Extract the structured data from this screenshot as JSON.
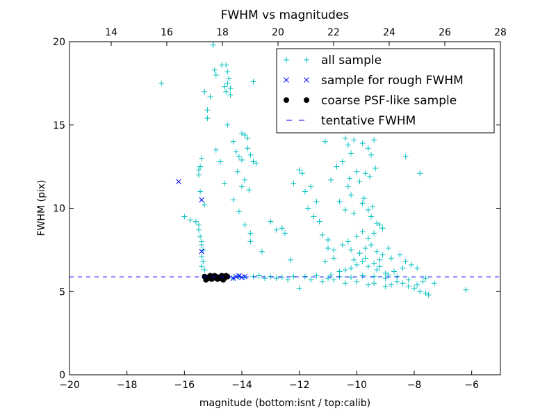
{
  "chart_data": {
    "type": "scatter",
    "title": "FWHM vs magnitudes",
    "xlabel": "magnitude (bottom:isnt / top:calib)",
    "ylabel": "FWHM (pix)",
    "xlim": [
      -20,
      -5
    ],
    "ylim": [
      0,
      20
    ],
    "top_xlim": [
      12.5,
      28
    ],
    "x_ticks": [
      -20,
      -18,
      -16,
      -14,
      -12,
      -10,
      -8,
      -6
    ],
    "x_tick_labels": [
      "−20",
      "−18",
      "−16",
      "−14",
      "−12",
      "−10",
      "−8",
      "−6"
    ],
    "y_ticks": [
      0,
      5,
      10,
      15,
      20
    ],
    "y_tick_labels": [
      "0",
      "5",
      "10",
      "15",
      "20"
    ],
    "top_ticks": [
      14,
      16,
      18,
      20,
      22,
      24,
      26,
      28
    ],
    "top_tick_labels": [
      "14",
      "16",
      "18",
      "20",
      "22",
      "24",
      "26",
      "28"
    ],
    "legend_position": "top-right",
    "tentative_fwhm": 5.88,
    "series": [
      {
        "name": "all sample",
        "marker": "+",
        "color": "#00bfbf",
        "points": [
          [
            -16.8,
            17.5
          ],
          [
            -16.0,
            9.5
          ],
          [
            -15.8,
            9.3
          ],
          [
            -15.6,
            9.2
          ],
          [
            -15.5,
            9.0
          ],
          [
            -15.5,
            8.7
          ],
          [
            -15.45,
            8.3
          ],
          [
            -15.4,
            8.0
          ],
          [
            -15.4,
            7.8
          ],
          [
            -15.35,
            7.5
          ],
          [
            -15.4,
            7.1
          ],
          [
            -15.35,
            6.8
          ],
          [
            -15.4,
            6.5
          ],
          [
            -15.3,
            6.3
          ],
          [
            -15.45,
            11.0
          ],
          [
            -15.5,
            12.0
          ],
          [
            -15.45,
            12.5
          ],
          [
            -15.5,
            12.3
          ],
          [
            -15.4,
            13.0
          ],
          [
            -15.3,
            10.2
          ],
          [
            -15.2,
            15.4
          ],
          [
            -15.2,
            15.9
          ],
          [
            -15.1,
            16.7
          ],
          [
            -15.3,
            17.0
          ],
          [
            -15.0,
            20.0
          ],
          [
            -15.0,
            19.8
          ],
          [
            -14.95,
            18.3
          ],
          [
            -14.9,
            18.0
          ],
          [
            -14.7,
            18.6
          ],
          [
            -14.55,
            18.6
          ],
          [
            -14.5,
            18.2
          ],
          [
            -14.45,
            17.8
          ],
          [
            -14.5,
            17.5
          ],
          [
            -14.4,
            17.2
          ],
          [
            -14.6,
            17.3
          ],
          [
            -14.55,
            17.0
          ],
          [
            -14.4,
            16.8
          ],
          [
            -14.5,
            15.0
          ],
          [
            -14.9,
            13.5
          ],
          [
            -14.75,
            12.8
          ],
          [
            -14.3,
            14.0
          ],
          [
            -14.2,
            13.4
          ],
          [
            -14.1,
            13.1
          ],
          [
            -14.15,
            12.2
          ],
          [
            -14.6,
            11.5
          ],
          [
            -14.0,
            14.5
          ],
          [
            -13.9,
            14.4
          ],
          [
            -13.8,
            14.2
          ],
          [
            -13.7,
            13.2
          ],
          [
            -13.6,
            12.8
          ],
          [
            -13.9,
            11.7
          ],
          [
            -14.0,
            11.3
          ],
          [
            -13.75,
            11.1
          ],
          [
            -14.3,
            10.5
          ],
          [
            -14.1,
            9.8
          ],
          [
            -13.9,
            9.0
          ],
          [
            -13.7,
            8.5
          ],
          [
            -13.6,
            17.6
          ],
          [
            -14.0,
            12.9
          ],
          [
            -13.8,
            13.6
          ],
          [
            -13.5,
            12.7
          ],
          [
            -13.0,
            9.2
          ],
          [
            -12.8,
            8.7
          ],
          [
            -12.5,
            8.5
          ],
          [
            -12.6,
            8.8
          ],
          [
            -12.3,
            6.9
          ],
          [
            -13.3,
            7.4
          ],
          [
            -13.7,
            8.0
          ],
          [
            -12.0,
            12.3
          ],
          [
            -11.8,
            11.0
          ],
          [
            -11.7,
            10.0
          ],
          [
            -11.5,
            9.5
          ],
          [
            -11.3,
            9.2
          ],
          [
            -11.4,
            10.4
          ],
          [
            -11.9,
            12.1
          ],
          [
            -12.2,
            11.5
          ],
          [
            -11.6,
            11.3
          ],
          [
            -11.2,
            8.4
          ],
          [
            -11.0,
            8.1
          ],
          [
            -11.0,
            7.6
          ],
          [
            -10.8,
            7.0
          ],
          [
            -10.5,
            12.8
          ],
          [
            -10.3,
            13.8
          ],
          [
            -10.2,
            13.3
          ],
          [
            -10.0,
            12.2
          ],
          [
            -10.3,
            11.3
          ],
          [
            -10.7,
            12.5
          ],
          [
            -10.9,
            11.7
          ],
          [
            -11.1,
            14.0
          ],
          [
            -10.4,
            14.2
          ],
          [
            -10.1,
            14.1
          ],
          [
            -9.8,
            13.9
          ],
          [
            -9.6,
            13.6
          ],
          [
            -9.5,
            13.2
          ],
          [
            -9.4,
            14.1
          ],
          [
            -9.7,
            12.1
          ],
          [
            -9.9,
            11.6
          ],
          [
            -10.2,
            10.8
          ],
          [
            -10.6,
            10.4
          ],
          [
            -10.4,
            9.9
          ],
          [
            -10.1,
            9.7
          ],
          [
            -9.8,
            10.3
          ],
          [
            -9.6,
            9.9
          ],
          [
            -9.5,
            9.5
          ],
          [
            -9.3,
            9.1
          ],
          [
            -9.2,
            9.0
          ],
          [
            -9.1,
            8.8
          ],
          [
            -9.4,
            8.5
          ],
          [
            -9.6,
            8.2
          ],
          [
            -9.8,
            8.6
          ],
          [
            -10.0,
            8.3
          ],
          [
            -10.3,
            8.0
          ],
          [
            -10.5,
            7.8
          ],
          [
            -10.2,
            7.5
          ],
          [
            -9.9,
            7.3
          ],
          [
            -9.7,
            7.6
          ],
          [
            -9.5,
            7.8
          ],
          [
            -9.3,
            7.4
          ],
          [
            -9.1,
            7.2
          ],
          [
            -8.9,
            7.6
          ],
          [
            -8.8,
            7.0
          ],
          [
            -8.5,
            7.2
          ],
          [
            -8.3,
            6.8
          ],
          [
            -8.1,
            6.6
          ],
          [
            -7.9,
            6.4
          ],
          [
            -9.2,
            6.9
          ],
          [
            -9.4,
            6.7
          ],
          [
            -9.6,
            6.5
          ],
          [
            -9.8,
            6.8
          ],
          [
            -10.0,
            6.6
          ],
          [
            -10.2,
            6.4
          ],
          [
            -10.4,
            6.3
          ],
          [
            -10.6,
            6.2
          ],
          [
            -10.1,
            6.9
          ],
          [
            -9.7,
            7.0
          ],
          [
            -9.3,
            6.3
          ],
          [
            -9.0,
            6.1
          ],
          [
            -8.7,
            6.2
          ],
          [
            -8.4,
            6.4
          ],
          [
            -8.6,
            5.6
          ],
          [
            -8.4,
            5.5
          ],
          [
            -8.2,
            5.3
          ],
          [
            -8.0,
            5.2
          ],
          [
            -7.8,
            5.0
          ],
          [
            -7.6,
            4.9
          ],
          [
            -7.5,
            4.8
          ],
          [
            -7.9,
            5.4
          ],
          [
            -7.7,
            5.6
          ],
          [
            -7.3,
            5.5
          ],
          [
            -6.2,
            5.1
          ],
          [
            -7.6,
            5.8
          ],
          [
            -8.8,
            5.4
          ],
          [
            -9.0,
            5.3
          ],
          [
            -9.4,
            5.5
          ],
          [
            -9.6,
            5.4
          ],
          [
            -10.0,
            5.6
          ],
          [
            -10.4,
            5.5
          ],
          [
            -10.8,
            5.7
          ],
          [
            -11.2,
            5.6
          ],
          [
            -11.6,
            5.7
          ],
          [
            -12.0,
            5.2
          ],
          [
            -12.4,
            5.7
          ],
          [
            -12.8,
            5.8
          ],
          [
            -13.2,
            5.8
          ],
          [
            -13.6,
            5.9
          ],
          [
            -13.9,
            5.85
          ],
          [
            -14.1,
            5.9
          ],
          [
            -14.3,
            5.8
          ],
          [
            -13.4,
            5.95
          ],
          [
            -13.0,
            5.9
          ],
          [
            -12.6,
            5.85
          ],
          [
            -12.2,
            5.9
          ],
          [
            -11.8,
            5.9
          ],
          [
            -11.4,
            5.95
          ],
          [
            -11.0,
            5.8
          ],
          [
            -10.6,
            5.9
          ],
          [
            -10.2,
            5.85
          ],
          [
            -9.8,
            5.95
          ],
          [
            -9.4,
            5.9
          ],
          [
            -9.0,
            5.8
          ],
          [
            -8.6,
            5.9
          ],
          [
            -8.2,
            5.7
          ],
          [
            -10.8,
            7.5
          ],
          [
            -11.1,
            6.8
          ],
          [
            -10.9,
            6.0
          ],
          [
            -9.2,
            6.5
          ],
          [
            -8.9,
            6.0
          ],
          [
            -9.55,
            11.9
          ],
          [
            -9.35,
            12.4
          ],
          [
            -10.25,
            11.8
          ],
          [
            -8.3,
            13.1
          ],
          [
            -7.8,
            12.1
          ],
          [
            -9.75,
            10.6
          ],
          [
            -9.45,
            10.1
          ]
        ]
      },
      {
        "name": "sample for rough FWHM",
        "marker": "x",
        "color": "#0000ff",
        "points": [
          [
            -16.2,
            11.6
          ],
          [
            -15.4,
            10.5
          ],
          [
            -15.4,
            7.4
          ],
          [
            -14.2,
            5.9
          ],
          [
            -14.0,
            5.85
          ],
          [
            -13.9,
            5.9
          ],
          [
            -14.1,
            5.95
          ],
          [
            -15.0,
            5.9
          ],
          [
            -14.3,
            5.8
          ]
        ]
      },
      {
        "name": "coarse PSF-like sample",
        "marker": "o",
        "color": "#000000",
        "points": [
          [
            -15.3,
            5.9
          ],
          [
            -15.2,
            5.85
          ],
          [
            -15.1,
            5.95
          ],
          [
            -15.0,
            5.8
          ],
          [
            -14.9,
            5.9
          ],
          [
            -14.8,
            5.85
          ],
          [
            -14.7,
            5.95
          ],
          [
            -14.6,
            5.8
          ],
          [
            -14.5,
            5.9
          ],
          [
            -15.25,
            5.7
          ],
          [
            -15.05,
            5.75
          ],
          [
            -14.85,
            5.75
          ],
          [
            -14.65,
            5.7
          ],
          [
            -14.55,
            5.95
          ],
          [
            -14.95,
            5.95
          ],
          [
            -15.15,
            5.8
          ],
          [
            -14.75,
            5.8
          ]
        ]
      },
      {
        "name": "tentative FWHM",
        "marker": "dashed-line",
        "color": "#0000ff"
      }
    ]
  }
}
